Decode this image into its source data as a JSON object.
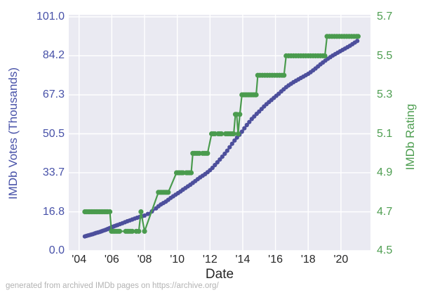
{
  "figure": {
    "footer": "generated from archived IMDb pages on https://archive.org/"
  },
  "chart_data": {
    "type": "line",
    "title": "",
    "xlabel": "Date",
    "grid": true,
    "legend": "none",
    "plot_bg_color": "#eaeaf2",
    "grid_color": "#ffffff",
    "x_axis": {
      "tick_labels": [
        "'04",
        "'06",
        "'08",
        "'10",
        "'12",
        "'14",
        "'16",
        "'18",
        "'20"
      ],
      "tick_years": [
        2004,
        2006,
        2008,
        2010,
        2012,
        2014,
        2016,
        2018,
        2020
      ],
      "range_years": [
        2003.4,
        2021.9
      ]
    },
    "left_axis": {
      "label": "IMDb Votes (Thousands)",
      "tick_labels": [
        "101.0",
        "84.2",
        "67.3",
        "50.5",
        "33.7",
        "16.8",
        "0.0"
      ],
      "tick_values": [
        101.0,
        84.2,
        67.3,
        50.5,
        33.7,
        16.8,
        0.0
      ],
      "range": [
        0.0,
        101.0
      ],
      "color": "#4751a8"
    },
    "right_axis": {
      "label": "IMDb Rating",
      "tick_labels": [
        "5.7",
        "5.5",
        "5.3",
        "5.1",
        "4.9",
        "4.7",
        "4.5"
      ],
      "tick_values": [
        5.7,
        5.5,
        5.3,
        5.1,
        4.9,
        4.7,
        4.5
      ],
      "range": [
        4.5,
        5.7
      ],
      "color": "#4e9e51"
    },
    "series": [
      {
        "name": "IMDb Votes (Thousands)",
        "axis": "left",
        "color": "#4d4f9c",
        "line_width": 2.8,
        "marker_radius": 3.1,
        "points": [
          [
            2004.35,
            6.2
          ],
          [
            2004.45,
            6.4
          ],
          [
            2004.55,
            6.6
          ],
          [
            2004.65,
            6.8
          ],
          [
            2004.75,
            7.0
          ],
          [
            2004.85,
            7.2
          ],
          [
            2004.95,
            7.45
          ],
          [
            2005.05,
            7.7
          ],
          [
            2005.15,
            7.9
          ],
          [
            2005.25,
            8.1
          ],
          [
            2005.35,
            8.35
          ],
          [
            2005.45,
            8.6
          ],
          [
            2005.55,
            8.85
          ],
          [
            2005.65,
            9.1
          ],
          [
            2005.75,
            9.4
          ],
          [
            2005.85,
            9.7
          ],
          [
            2005.95,
            10.0
          ],
          [
            2006.05,
            10.3
          ],
          [
            2006.15,
            10.6
          ],
          [
            2006.25,
            10.85
          ],
          [
            2006.35,
            11.1
          ],
          [
            2006.5,
            11.5
          ],
          [
            2006.65,
            11.9
          ],
          [
            2006.8,
            12.3
          ],
          [
            2006.95,
            12.75
          ],
          [
            2007.1,
            13.1
          ],
          [
            2007.25,
            13.5
          ],
          [
            2007.4,
            13.9
          ],
          [
            2007.55,
            14.25
          ],
          [
            2007.7,
            14.6
          ],
          [
            2007.85,
            14.9
          ],
          [
            2008.0,
            15.2
          ],
          [
            2008.2,
            15.9
          ],
          [
            2008.45,
            17.0
          ],
          [
            2008.7,
            18.3
          ],
          [
            2008.85,
            19.2
          ],
          [
            2009.0,
            20.0
          ],
          [
            2009.15,
            20.6
          ],
          [
            2009.3,
            21.2
          ],
          [
            2009.45,
            22.0
          ],
          [
            2009.6,
            22.8
          ],
          [
            2009.75,
            23.5
          ],
          [
            2009.9,
            24.2
          ],
          [
            2010.05,
            24.9
          ],
          [
            2010.2,
            25.6
          ],
          [
            2010.35,
            26.4
          ],
          [
            2010.5,
            27.1
          ],
          [
            2010.65,
            27.8
          ],
          [
            2010.8,
            28.5
          ],
          [
            2010.95,
            29.3
          ],
          [
            2011.1,
            30.1
          ],
          [
            2011.25,
            30.9
          ],
          [
            2011.4,
            31.7
          ],
          [
            2011.55,
            32.4
          ],
          [
            2011.7,
            33.1
          ],
          [
            2011.85,
            33.9
          ],
          [
            2012.0,
            34.8
          ],
          [
            2012.15,
            35.8
          ],
          [
            2012.3,
            37.0
          ],
          [
            2012.45,
            38.2
          ],
          [
            2012.6,
            39.4
          ],
          [
            2012.75,
            40.6
          ],
          [
            2012.9,
            41.9
          ],
          [
            2013.05,
            43.2
          ],
          [
            2013.2,
            44.7
          ],
          [
            2013.35,
            46.2
          ],
          [
            2013.5,
            47.6
          ],
          [
            2013.65,
            48.9
          ],
          [
            2013.8,
            50.1
          ],
          [
            2013.95,
            51.4
          ],
          [
            2014.1,
            52.9
          ],
          [
            2014.25,
            54.3
          ],
          [
            2014.4,
            55.6
          ],
          [
            2014.55,
            56.9
          ],
          [
            2014.7,
            58.0
          ],
          [
            2014.85,
            59.1
          ],
          [
            2015.0,
            60.1
          ],
          [
            2015.15,
            61.2
          ],
          [
            2015.3,
            62.3
          ],
          [
            2015.45,
            63.3
          ],
          [
            2015.6,
            64.2
          ],
          [
            2015.75,
            65.1
          ],
          [
            2015.9,
            66.0
          ],
          [
            2016.05,
            66.9
          ],
          [
            2016.2,
            67.8
          ],
          [
            2016.35,
            68.8
          ],
          [
            2016.5,
            69.7
          ],
          [
            2016.65,
            70.6
          ],
          [
            2016.8,
            71.4
          ],
          [
            2016.95,
            72.1
          ],
          [
            2017.1,
            72.8
          ],
          [
            2017.25,
            73.4
          ],
          [
            2017.4,
            74.0
          ],
          [
            2017.55,
            74.6
          ],
          [
            2017.7,
            75.2
          ],
          [
            2017.85,
            75.8
          ],
          [
            2018.0,
            76.4
          ],
          [
            2018.15,
            77.1
          ],
          [
            2018.3,
            77.9
          ],
          [
            2018.45,
            78.7
          ],
          [
            2018.6,
            79.6
          ],
          [
            2018.75,
            80.5
          ],
          [
            2018.9,
            81.3
          ],
          [
            2019.05,
            82.1
          ],
          [
            2019.2,
            82.9
          ],
          [
            2019.35,
            83.6
          ],
          [
            2019.5,
            84.3
          ],
          [
            2019.65,
            84.9
          ],
          [
            2019.8,
            85.5
          ],
          [
            2019.95,
            86.1
          ],
          [
            2020.1,
            86.7
          ],
          [
            2020.25,
            87.3
          ],
          [
            2020.4,
            87.9
          ],
          [
            2020.55,
            88.5
          ],
          [
            2020.7,
            89.2
          ],
          [
            2020.85,
            89.9
          ],
          [
            2021.0,
            90.6
          ]
        ]
      },
      {
        "name": "IMDb Rating",
        "axis": "right",
        "color": "#4a9b4e",
        "line_width": 2.2,
        "marker_radius": 3.6,
        "points": [
          [
            2004.35,
            4.7
          ],
          [
            2004.45,
            4.7
          ],
          [
            2004.55,
            4.7
          ],
          [
            2004.65,
            4.7
          ],
          [
            2004.75,
            4.7
          ],
          [
            2004.85,
            4.7
          ],
          [
            2004.95,
            4.7
          ],
          [
            2005.05,
            4.7
          ],
          [
            2005.15,
            4.7
          ],
          [
            2005.25,
            4.7
          ],
          [
            2005.35,
            4.7
          ],
          [
            2005.45,
            4.7
          ],
          [
            2005.55,
            4.7
          ],
          [
            2005.65,
            4.7
          ],
          [
            2005.75,
            4.7
          ],
          [
            2005.88,
            4.7
          ],
          [
            2005.98,
            4.6
          ],
          [
            2006.08,
            4.6
          ],
          [
            2006.18,
            4.6
          ],
          [
            2006.28,
            4.6
          ],
          [
            2006.38,
            4.6
          ],
          [
            2006.48,
            4.6
          ],
          [
            2006.85,
            4.6
          ],
          [
            2006.95,
            4.6
          ],
          [
            2007.05,
            4.6
          ],
          [
            2007.15,
            4.6
          ],
          [
            2007.25,
            4.6
          ],
          [
            2007.5,
            4.6
          ],
          [
            2007.65,
            4.6
          ],
          [
            2007.78,
            4.7
          ],
          [
            2008.0,
            4.6
          ],
          [
            2008.85,
            4.8
          ],
          [
            2008.95,
            4.8
          ],
          [
            2009.05,
            4.8
          ],
          [
            2009.15,
            4.8
          ],
          [
            2009.25,
            4.8
          ],
          [
            2009.35,
            4.8
          ],
          [
            2009.45,
            4.8
          ],
          [
            2009.95,
            4.9
          ],
          [
            2010.05,
            4.9
          ],
          [
            2010.15,
            4.9
          ],
          [
            2010.25,
            4.9
          ],
          [
            2010.35,
            4.9
          ],
          [
            2010.55,
            4.9
          ],
          [
            2010.65,
            4.9
          ],
          [
            2010.75,
            4.9
          ],
          [
            2010.85,
            4.9
          ],
          [
            2010.95,
            5.0
          ],
          [
            2011.05,
            5.0
          ],
          [
            2011.15,
            5.0
          ],
          [
            2011.25,
            5.0
          ],
          [
            2011.35,
            5.0
          ],
          [
            2011.55,
            5.0
          ],
          [
            2011.65,
            5.0
          ],
          [
            2011.75,
            5.0
          ],
          [
            2011.85,
            5.0
          ],
          [
            2012.1,
            5.1
          ],
          [
            2012.2,
            5.1
          ],
          [
            2012.3,
            5.1
          ],
          [
            2012.5,
            5.1
          ],
          [
            2012.6,
            5.1
          ],
          [
            2012.7,
            5.1
          ],
          [
            2012.95,
            5.1
          ],
          [
            2013.05,
            5.1
          ],
          [
            2013.15,
            5.1
          ],
          [
            2013.25,
            5.1
          ],
          [
            2013.35,
            5.1
          ],
          [
            2013.45,
            5.1
          ],
          [
            2013.55,
            5.2
          ],
          [
            2013.63,
            5.2
          ],
          [
            2013.72,
            5.1
          ],
          [
            2013.82,
            5.2
          ],
          [
            2013.95,
            5.3
          ],
          [
            2014.05,
            5.3
          ],
          [
            2014.15,
            5.3
          ],
          [
            2014.25,
            5.3
          ],
          [
            2014.35,
            5.3
          ],
          [
            2014.45,
            5.3
          ],
          [
            2014.55,
            5.3
          ],
          [
            2014.65,
            5.3
          ],
          [
            2014.75,
            5.3
          ],
          [
            2014.82,
            5.3
          ],
          [
            2014.92,
            5.4
          ],
          [
            2015.05,
            5.4
          ],
          [
            2015.2,
            5.4
          ],
          [
            2015.35,
            5.4
          ],
          [
            2015.5,
            5.4
          ],
          [
            2015.65,
            5.4
          ],
          [
            2015.8,
            5.4
          ],
          [
            2015.95,
            5.4
          ],
          [
            2016.1,
            5.4
          ],
          [
            2016.25,
            5.4
          ],
          [
            2016.4,
            5.4
          ],
          [
            2016.52,
            5.4
          ],
          [
            2016.65,
            5.5
          ],
          [
            2016.8,
            5.5
          ],
          [
            2016.95,
            5.5
          ],
          [
            2017.1,
            5.5
          ],
          [
            2017.25,
            5.5
          ],
          [
            2017.4,
            5.5
          ],
          [
            2017.55,
            5.5
          ],
          [
            2017.7,
            5.5
          ],
          [
            2017.85,
            5.5
          ],
          [
            2018.0,
            5.5
          ],
          [
            2018.15,
            5.5
          ],
          [
            2018.3,
            5.5
          ],
          [
            2018.45,
            5.5
          ],
          [
            2018.6,
            5.5
          ],
          [
            2018.75,
            5.5
          ],
          [
            2018.9,
            5.5
          ],
          [
            2019.02,
            5.5
          ],
          [
            2019.15,
            5.6
          ],
          [
            2019.3,
            5.6
          ],
          [
            2019.45,
            5.6
          ],
          [
            2019.6,
            5.6
          ],
          [
            2019.75,
            5.6
          ],
          [
            2019.9,
            5.6
          ],
          [
            2020.05,
            5.6
          ],
          [
            2020.2,
            5.6
          ],
          [
            2020.35,
            5.6
          ],
          [
            2020.5,
            5.6
          ],
          [
            2020.65,
            5.6
          ],
          [
            2020.8,
            5.6
          ],
          [
            2020.95,
            5.6
          ],
          [
            2021.05,
            5.6
          ]
        ]
      }
    ]
  }
}
